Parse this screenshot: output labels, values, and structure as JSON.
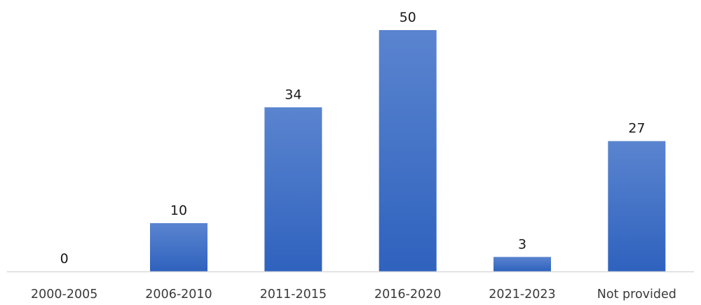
{
  "chart_data": {
    "type": "bar",
    "categories": [
      "2000-2005",
      "2006-2010",
      "2011-2015",
      "2016-2020",
      "2021-2023",
      "Not provided"
    ],
    "values": [
      0,
      10,
      34,
      50,
      3,
      27
    ],
    "title": "",
    "xlabel": "",
    "ylabel": "",
    "ylim": [
      0,
      50
    ],
    "grid": false,
    "legend": "none",
    "data_labels": true,
    "colors": {
      "bar_top": "#5a84cf",
      "bar_bottom": "#2f62be",
      "axis": "#d9d9d9"
    }
  }
}
